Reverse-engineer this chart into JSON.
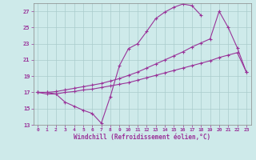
{
  "xlabel": "Windchill (Refroidissement éolien,°C)",
  "bg_color": "#ceeaea",
  "line_color": "#993399",
  "grid_color": "#aacccc",
  "series1_x": [
    0,
    1,
    2,
    3,
    4,
    5,
    6,
    7,
    8,
    9,
    10,
    11,
    12,
    13,
    14,
    15,
    16,
    17,
    18
  ],
  "series1_y": [
    17.0,
    17.0,
    16.8,
    15.8,
    15.3,
    14.8,
    14.4,
    13.2,
    16.5,
    20.3,
    22.4,
    23.0,
    24.5,
    26.1,
    26.9,
    27.5,
    27.9,
    27.7,
    26.5
  ],
  "series2_x": [
    0,
    1,
    2,
    3,
    4,
    5,
    6,
    7,
    8,
    9,
    10,
    11,
    12,
    13,
    14,
    15,
    16,
    17,
    18,
    19,
    20,
    21,
    22,
    23
  ],
  "series2_y": [
    17.0,
    17.0,
    17.1,
    17.3,
    17.5,
    17.7,
    17.9,
    18.1,
    18.4,
    18.7,
    19.1,
    19.5,
    20.0,
    20.5,
    21.0,
    21.5,
    22.0,
    22.6,
    23.1,
    23.6,
    27.0,
    25.0,
    22.5,
    19.5
  ],
  "series3_x": [
    0,
    1,
    2,
    3,
    4,
    5,
    6,
    7,
    8,
    9,
    10,
    11,
    12,
    13,
    14,
    15,
    16,
    17,
    18,
    19,
    20,
    21,
    22,
    23
  ],
  "series3_y": [
    17.0,
    16.8,
    16.8,
    17.0,
    17.1,
    17.3,
    17.4,
    17.6,
    17.8,
    18.0,
    18.2,
    18.5,
    18.8,
    19.1,
    19.4,
    19.7,
    20.0,
    20.3,
    20.6,
    20.9,
    21.3,
    21.6,
    21.9,
    19.5
  ],
  "xlim": [
    -0.5,
    23.5
  ],
  "ylim": [
    13,
    28
  ],
  "yticks": [
    13,
    15,
    17,
    19,
    21,
    23,
    25,
    27
  ],
  "xticks": [
    0,
    1,
    2,
    3,
    4,
    5,
    6,
    7,
    8,
    9,
    10,
    11,
    12,
    13,
    14,
    15,
    16,
    17,
    18,
    19,
    20,
    21,
    22,
    23
  ]
}
